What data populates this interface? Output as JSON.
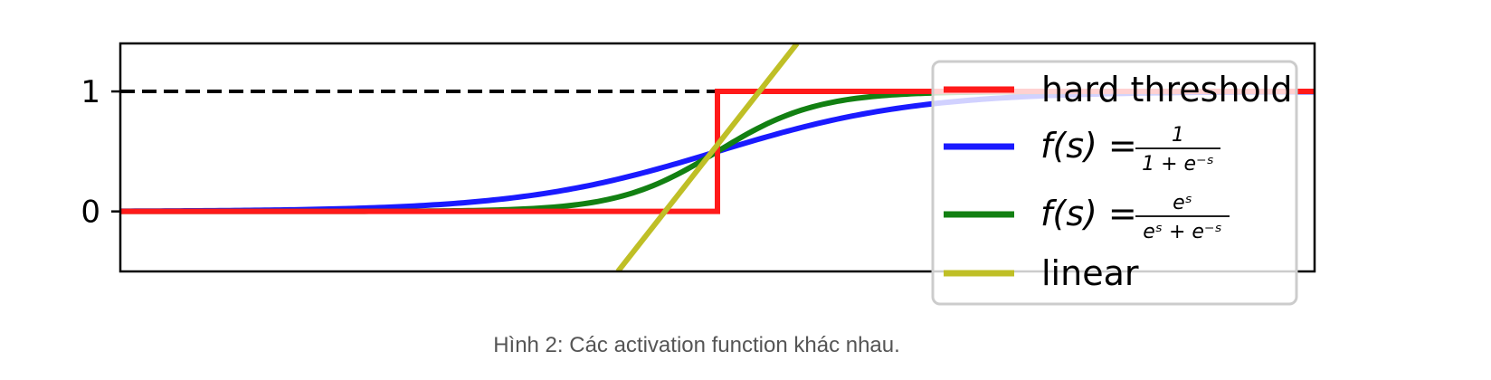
{
  "caption": "Hình 2: Các activation function khác nhau.",
  "chart_data": {
    "type": "line",
    "title": "",
    "xlabel": "",
    "ylabel": "",
    "xlim": [
      -6,
      6
    ],
    "ylim": [
      -0.5,
      1.4
    ],
    "y_ticks": [
      {
        "value": 0,
        "label": "0"
      },
      {
        "value": 1,
        "label": "1"
      }
    ],
    "grid": false,
    "legend_position": "right",
    "reference_line": {
      "y": 1,
      "style": "dashed",
      "color": "#000000",
      "x_range": [
        -6,
        0
      ]
    },
    "series": [
      {
        "name": "hard threshold",
        "kind": "step",
        "color": "#ff1a1a",
        "points": [
          [
            -6,
            0
          ],
          [
            0,
            0
          ],
          [
            0,
            1
          ],
          [
            6,
            1
          ]
        ]
      },
      {
        "name": "f(s) = 1 / (1 + e^{-s})",
        "kind": "sigmoid",
        "color": "#1a1aff",
        "points": [
          [
            -6,
            0.0025
          ],
          [
            -5,
            0.0067
          ],
          [
            -4,
            0.018
          ],
          [
            -3,
            0.047
          ],
          [
            -2,
            0.119
          ],
          [
            -1,
            0.269
          ],
          [
            0,
            0.5
          ],
          [
            1,
            0.731
          ],
          [
            2,
            0.881
          ],
          [
            3,
            0.953
          ],
          [
            4,
            0.982
          ],
          [
            5,
            0.993
          ],
          [
            6,
            0.9975
          ]
        ]
      },
      {
        "name": "f(s) = e^s / (e^s + e^{-s})",
        "kind": "sigmoid",
        "color": "#128012",
        "points": [
          [
            -6,
            0.0
          ],
          [
            -5,
            5e-05
          ],
          [
            -4,
            0.0003
          ],
          [
            -3,
            0.0025
          ],
          [
            -2,
            0.018
          ],
          [
            -1,
            0.119
          ],
          [
            0,
            0.5
          ],
          [
            1,
            0.881
          ],
          [
            2,
            0.982
          ],
          [
            3,
            0.9975
          ],
          [
            4,
            0.9997
          ],
          [
            5,
            0.99995
          ],
          [
            6,
            1.0
          ]
        ]
      },
      {
        "name": "linear",
        "kind": "line",
        "color": "#bfbf26",
        "points": [
          [
            -1.0,
            -0.5
          ],
          [
            0.8,
            1.4
          ]
        ]
      }
    ],
    "legend": [
      {
        "label": "hard threshold",
        "color": "#ff1a1a"
      },
      {
        "label_parts": {
          "lhs": "f(s) =",
          "num": "1",
          "den": "1 + e⁻ˢ"
        },
        "color": "#1a1aff"
      },
      {
        "label_parts": {
          "lhs": "f(s) =",
          "num": "eˢ",
          "den": "eˢ + e⁻ˢ"
        },
        "color": "#128012"
      },
      {
        "label": "linear",
        "color": "#bfbf26"
      }
    ]
  }
}
